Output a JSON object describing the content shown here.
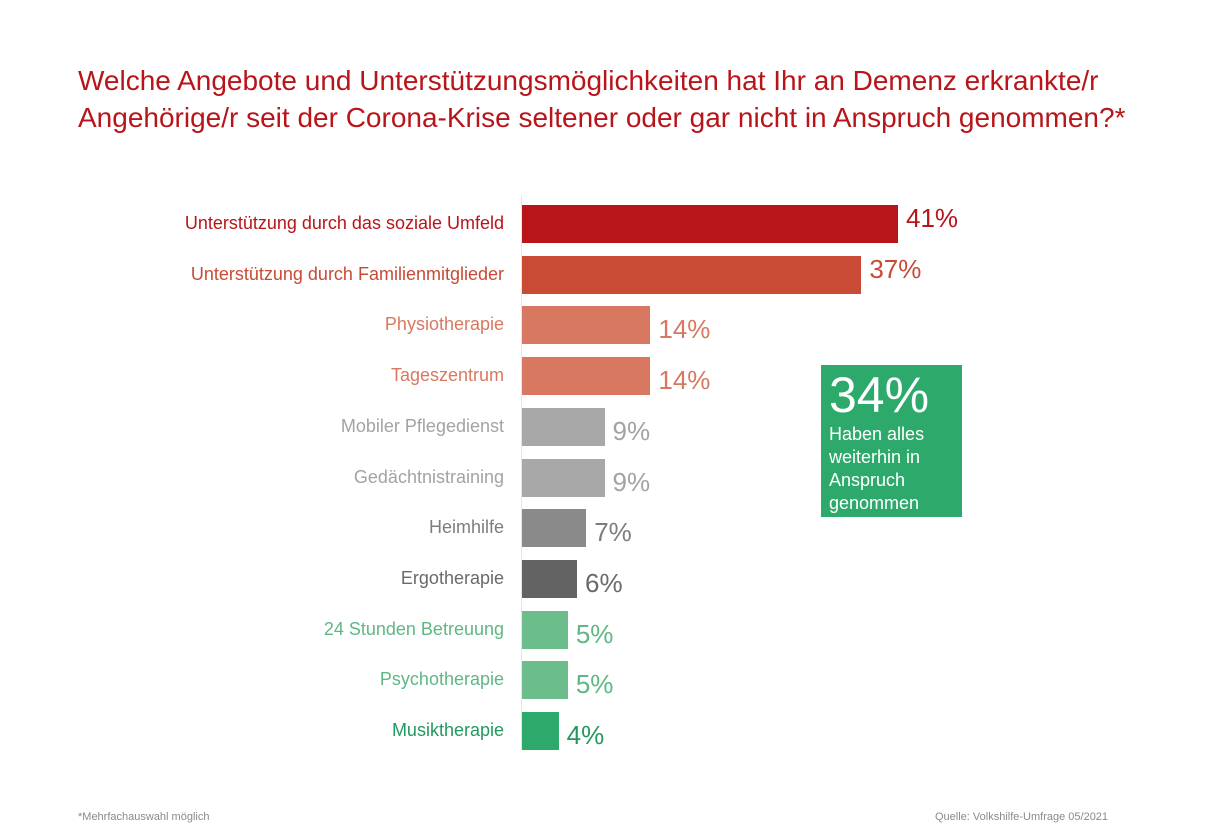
{
  "chart_data": {
    "type": "bar",
    "orientation": "horizontal",
    "title": "Welche Angebote und Unterstützungsmöglichkeiten hat Ihr an Demenz erkrankte/r Angehörige/r seit der Corona-Krise seltener oder gar nicht in Anspruch genommen?*",
    "xlabel": "",
    "ylabel": "",
    "unit": "%",
    "xlim": [
      0,
      45
    ],
    "grid": false,
    "categories": [
      "Unterstützung durch das soziale Umfeld",
      "Unterstützung durch Familienmitglieder",
      "Physiotherapie",
      "Tageszentrum",
      "Mobiler Pflegedienst",
      "Gedächtnistraining",
      "Heimhilfe",
      "Ergotherapie",
      "24 Stunden Betreuung",
      "Psychotherapie",
      "Musiktherapie"
    ],
    "values": [
      41,
      37,
      14,
      14,
      9,
      9,
      7,
      6,
      5,
      5,
      4
    ],
    "value_labels": [
      "41%",
      "37%",
      "14%",
      "14%",
      "9%",
      "9%",
      "7%",
      "6%",
      "5%",
      "5%",
      "4%"
    ],
    "bar_colors": [
      "#b8151a",
      "#c94a35",
      "#d97860",
      "#d97860",
      "#a8a8a8",
      "#a8a8a8",
      "#8a8a8a",
      "#636363",
      "#6cbd8c",
      "#6cbd8c",
      "#2ca96b"
    ],
    "label_colors": [
      "#b8151a",
      "#c94a35",
      "#d97860",
      "#d97860",
      "#a3a3a3",
      "#a3a3a3",
      "#7d7d7d",
      "#6a6a6a",
      "#5fb783",
      "#5fb783",
      "#22995e"
    ],
    "annotation": {
      "value": "34%",
      "text": "Haben alles weiterhin in Anspruch genommen",
      "color": "#2ca96b"
    }
  },
  "footer": {
    "footnote": "*Mehrfachauswahl möglich",
    "source": "Quelle: Volkshilfe-Umfrage 05/2021"
  }
}
